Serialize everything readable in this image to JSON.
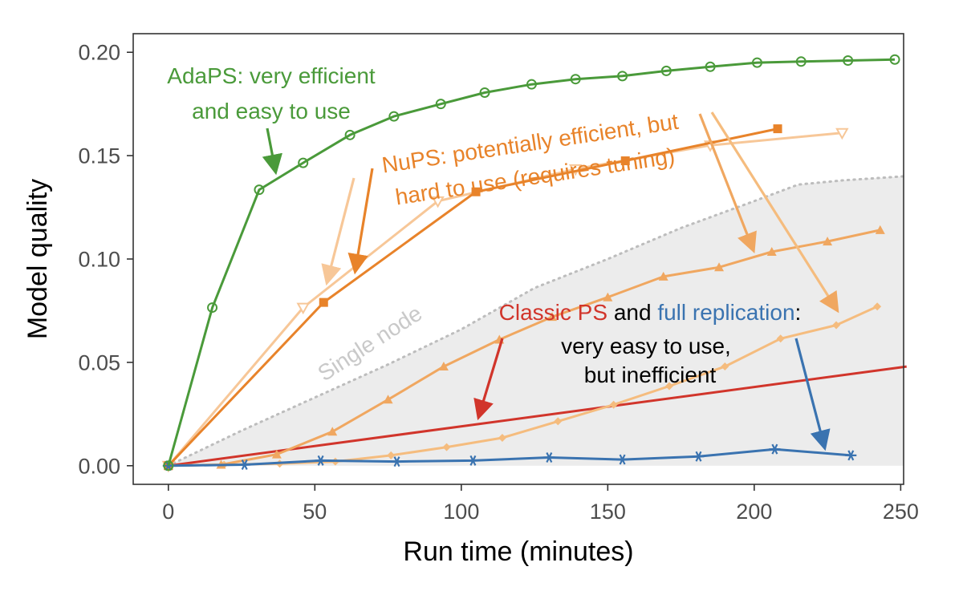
{
  "chart_data": {
    "type": "line",
    "xlabel": "Run time (minutes)",
    "ylabel": "Model quality",
    "xlim": [
      -12,
      251
    ],
    "ylim": [
      -0.009,
      0.209
    ],
    "x_ticks": [
      0,
      50,
      100,
      150,
      200,
      250
    ],
    "x_tick_labels": [
      "0",
      "50",
      "100",
      "150",
      "200",
      "250"
    ],
    "y_ticks": [
      0.0,
      0.05,
      0.1,
      0.15,
      0.2
    ],
    "y_tick_labels": [
      "0.00",
      "0.05",
      "0.10",
      "0.15",
      "0.20"
    ],
    "grid": false,
    "colors": {
      "adaps": "#4a9a3a",
      "nups_dark": "#e8832a",
      "nups_light": "#f7c798",
      "nups_mid": "#f0a760",
      "nups_pale": "#f5bc7e",
      "classic": "#d1352b",
      "full_replication": "#3a73b0",
      "single_node_band": "#ececec",
      "single_node_line": "#bdbdbd"
    },
    "single_node": {
      "label": "Single node",
      "upper": [
        [
          0,
          0
        ],
        [
          25,
          0.017
        ],
        [
          50,
          0.033
        ],
        [
          75,
          0.049
        ],
        [
          100,
          0.066
        ],
        [
          125,
          0.086
        ],
        [
          150,
          0.1
        ],
        [
          175,
          0.115
        ],
        [
          200,
          0.128
        ],
        [
          215,
          0.136
        ],
        [
          230,
          0.138
        ],
        [
          251,
          0.14
        ]
      ]
    },
    "series": [
      {
        "key": "adaps",
        "marker": "circle-open",
        "x": [
          0,
          15,
          31,
          46,
          62,
          77,
          93,
          108,
          124,
          139,
          155,
          170,
          185,
          201,
          216,
          232,
          248
        ],
        "y": [
          0,
          0.0765,
          0.1335,
          0.1465,
          0.16,
          0.169,
          0.175,
          0.1805,
          0.1845,
          0.187,
          0.1885,
          0.191,
          0.193,
          0.195,
          0.1955,
          0.196,
          0.1965
        ]
      },
      {
        "key": "nups_dark",
        "marker": "square",
        "x": [
          0,
          53,
          105,
          156,
          208
        ],
        "y": [
          0,
          0.079,
          0.1325,
          0.1475,
          0.163
        ]
      },
      {
        "key": "nups_light",
        "marker": "triangle-down-open",
        "x": [
          0,
          46,
          92,
          139,
          185,
          230
        ],
        "y": [
          0,
          0.0765,
          0.128,
          0.1435,
          0.155,
          0.161
        ]
      },
      {
        "key": "nups_mid",
        "marker": "triangle",
        "x": [
          0,
          18,
          37,
          56,
          75,
          94,
          113,
          131,
          150,
          169,
          188,
          206,
          225,
          243
        ],
        "y": [
          0,
          0.0005,
          0.0055,
          0.0165,
          0.032,
          0.048,
          0.061,
          0.072,
          0.0815,
          0.0915,
          0.096,
          0.1035,
          0.1085,
          0.114
        ]
      },
      {
        "key": "nups_pale",
        "marker": "diamond",
        "x": [
          0,
          19,
          38,
          57,
          76,
          95,
          114,
          133,
          152,
          171,
          190,
          209,
          228,
          242
        ],
        "y": [
          0,
          0.0005,
          0.001,
          0.002,
          0.005,
          0.009,
          0.0135,
          0.0215,
          0.0295,
          0.0385,
          0.048,
          0.0615,
          0.068,
          0.077
        ]
      },
      {
        "key": "classic",
        "marker": "none",
        "x": [
          0,
          252
        ],
        "y": [
          0,
          0.048
        ]
      },
      {
        "key": "full_replication",
        "marker": "asterisk",
        "x": [
          0,
          26,
          52,
          78,
          104,
          130,
          155,
          181,
          207,
          233
        ],
        "y": [
          0,
          0.0005,
          0.0025,
          0.002,
          0.0025,
          0.004,
          0.003,
          0.0045,
          0.008,
          0.005
        ]
      }
    ],
    "annotations": {
      "adaps": [
        "AdaPS: very efficient",
        "and easy to use"
      ],
      "nups": [
        "NuPS: potentially efficient, but",
        "hard to use (requires tuning)"
      ],
      "classic_ps": "Classic PS",
      "and_word": " and ",
      "full_replication": "full replication",
      "colon": ":",
      "ineff_line1": "very easy to use,",
      "ineff_line2": "but inefficient"
    }
  }
}
